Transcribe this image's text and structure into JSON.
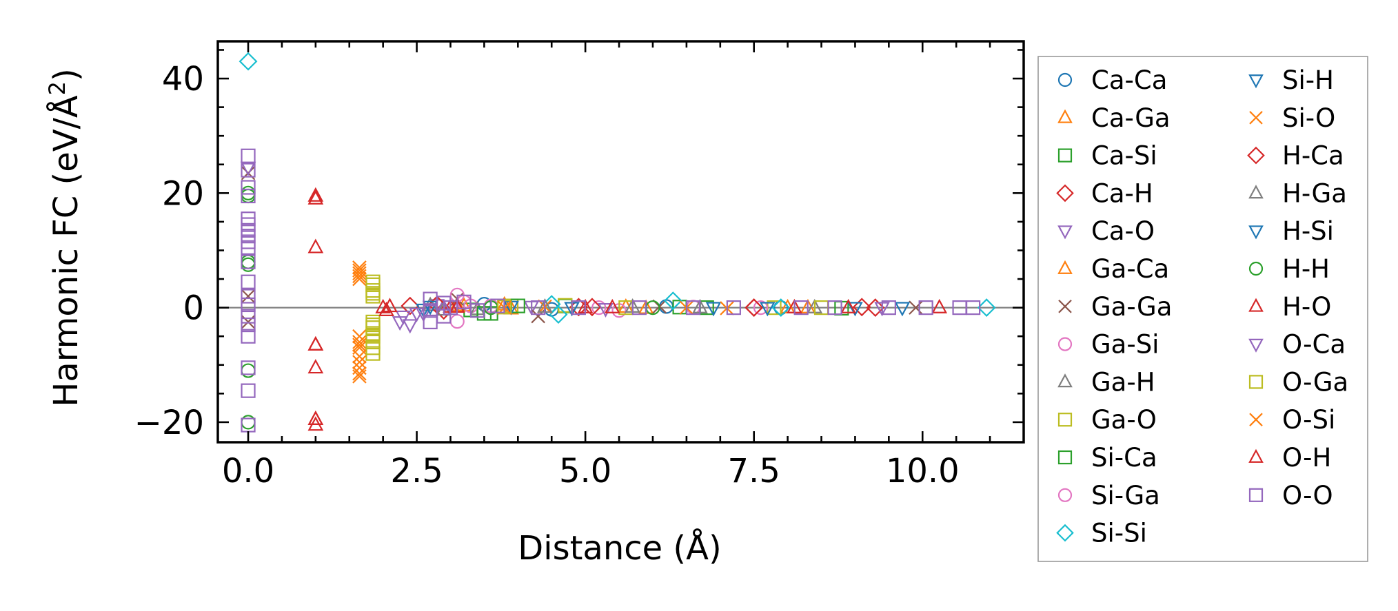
{
  "chart_data": {
    "type": "scatter",
    "xlabel": "Distance (Å)",
    "ylabel_main": "Harmonic FC (eV/Å",
    "ylabel_sup": "2",
    "ylabel_close": ")",
    "xlim": [
      -0.45,
      11.5
    ],
    "ylim": [
      -23.5,
      46.5
    ],
    "x_ticks": [
      0.0,
      2.5,
      5.0,
      7.5,
      10.0
    ],
    "x_tick_labels": [
      "0.0",
      "2.5",
      "5.0",
      "7.5",
      "10.0"
    ],
    "y_ticks": [
      -20,
      0,
      20,
      40
    ],
    "y_tick_labels": [
      "−20",
      "0",
      "20",
      "40"
    ],
    "zero_line": 0,
    "series": [
      {
        "name": "Ca-Ca",
        "color": "#1f77b4",
        "marker": "circle",
        "points": [
          [
            3.5,
            0.6
          ],
          [
            4.5,
            -0.3
          ],
          [
            6.2,
            0.2
          ],
          [
            7.9,
            0.0
          ]
        ]
      },
      {
        "name": "Ca-Ga",
        "color": "#ff7f0e",
        "marker": "triangle-up",
        "points": [
          [
            3.1,
            0.4
          ],
          [
            3.9,
            -0.2
          ],
          [
            5.6,
            0.1
          ],
          [
            8.3,
            0.0
          ]
        ]
      },
      {
        "name": "Ca-Si",
        "color": "#2ca02c",
        "marker": "square",
        "points": [
          [
            3.3,
            -0.4
          ],
          [
            3.6,
            -1.0
          ],
          [
            4.7,
            0.3
          ],
          [
            6.8,
            0.0
          ]
        ]
      },
      {
        "name": "Ca-H",
        "color": "#d62728",
        "marker": "diamond",
        "points": [
          [
            2.4,
            0.3
          ],
          [
            2.9,
            -0.5
          ],
          [
            4.9,
            0.1
          ],
          [
            7.5,
            0.0
          ],
          [
            9.1,
            0.1
          ]
        ]
      },
      {
        "name": "Ca-O",
        "color": "#9467bd",
        "marker": "triangle-down",
        "points": [
          [
            2.3,
            -1.5
          ],
          [
            2.4,
            -3.0
          ],
          [
            2.6,
            -1.0
          ],
          [
            2.8,
            0.5
          ],
          [
            4.2,
            0.2
          ]
        ]
      },
      {
        "name": "Ga-Ca",
        "color": "#ff7f0e",
        "marker": "triangle-up",
        "points": [
          [
            3.2,
            0.3
          ],
          [
            3.8,
            0.5
          ],
          [
            5.9,
            -0.1
          ],
          [
            8.0,
            0.0
          ]
        ]
      },
      {
        "name": "Ga-Ga",
        "color": "#8c564b",
        "marker": "x",
        "points": [
          [
            0,
            23.5
          ],
          [
            0,
            2
          ],
          [
            0,
            -2.5
          ],
          [
            3.1,
            1.5
          ],
          [
            4.3,
            -1.5
          ],
          [
            6.1,
            0.2
          ],
          [
            9.9,
            0.0
          ]
        ]
      },
      {
        "name": "Ga-Si",
        "color": "#e377c2",
        "marker": "circle",
        "points": [
          [
            3.1,
            2.2
          ],
          [
            3.1,
            -2.4
          ],
          [
            3.3,
            0.3
          ],
          [
            5.5,
            -0.5
          ],
          [
            6.6,
            0.1
          ]
        ]
      },
      {
        "name": "Ga-H",
        "color": "#7f7f7f",
        "marker": "triangle-up",
        "points": [
          [
            2.7,
            0.4
          ],
          [
            3.4,
            -0.3
          ],
          [
            5.7,
            0.1
          ],
          [
            8.4,
            0.0
          ]
        ]
      },
      {
        "name": "Ga-O",
        "color": "#bcbd22",
        "marker": "square",
        "points": [
          [
            1.85,
            4.5
          ],
          [
            1.85,
            3
          ],
          [
            1.85,
            2
          ],
          [
            1.85,
            -2.5
          ],
          [
            1.85,
            -3.5
          ],
          [
            1.85,
            -4.5
          ],
          [
            1.85,
            -6
          ],
          [
            1.85,
            -8
          ],
          [
            3.9,
            0.3
          ],
          [
            4.7,
            0.4
          ],
          [
            7.8,
            0.0
          ],
          [
            8.5,
            0.0
          ]
        ]
      },
      {
        "name": "Si-Ca",
        "color": "#2ca02c",
        "marker": "square",
        "points": [
          [
            3.5,
            -1.0
          ],
          [
            4.0,
            0.3
          ],
          [
            6.4,
            0.1
          ],
          [
            8.8,
            -0.1
          ]
        ]
      },
      {
        "name": "Si-Ga",
        "color": "#e377c2",
        "marker": "circle",
        "points": [
          [
            3.2,
            1.0
          ],
          [
            3.6,
            0.3
          ],
          [
            5.2,
            0.0
          ],
          [
            7.6,
            0.0
          ]
        ]
      },
      {
        "name": "Si-Si",
        "color": "#17becf",
        "marker": "diamond",
        "points": [
          [
            0,
            43
          ],
          [
            4.5,
            0.6
          ],
          [
            4.6,
            -1.2
          ],
          [
            6.3,
            1.2
          ],
          [
            7.9,
            0.0
          ],
          [
            10.95,
            0.0
          ]
        ]
      },
      {
        "name": "Si-H",
        "color": "#1f77b4",
        "marker": "triangle-down",
        "points": [
          [
            2.6,
            -0.3
          ],
          [
            3.9,
            0.2
          ],
          [
            6.9,
            0.0
          ],
          [
            9.0,
            0.0
          ]
        ]
      },
      {
        "name": "Si-O",
        "color": "#ff7f0e",
        "marker": "x",
        "points": [
          [
            1.65,
            7
          ],
          [
            1.65,
            6
          ],
          [
            1.65,
            5
          ],
          [
            1.65,
            -5
          ],
          [
            1.65,
            -6
          ],
          [
            1.65,
            -7
          ],
          [
            1.65,
            -8.5
          ],
          [
            1.65,
            -10.5
          ],
          [
            1.65,
            -12
          ],
          [
            4.4,
            0.2
          ],
          [
            7.1,
            -0.1
          ]
        ]
      },
      {
        "name": "H-Ca",
        "color": "#d62728",
        "marker": "diamond",
        "points": [
          [
            2.8,
            0.5
          ],
          [
            5.1,
            0.1
          ],
          [
            7.5,
            0.0
          ],
          [
            9.3,
            0.0
          ]
        ]
      },
      {
        "name": "H-Ga",
        "color": "#7f7f7f",
        "marker": "triangle-up",
        "points": [
          [
            2.9,
            -0.4
          ],
          [
            4.4,
            0.1
          ],
          [
            6.7,
            0.0
          ]
        ]
      },
      {
        "name": "H-Si",
        "color": "#1f77b4",
        "marker": "triangle-down",
        "points": [
          [
            2.7,
            0.2
          ],
          [
            4.8,
            0.0
          ],
          [
            7.7,
            0.0
          ],
          [
            9.7,
            0.0
          ]
        ]
      },
      {
        "name": "H-H",
        "color": "#2ca02c",
        "marker": "circle",
        "points": [
          [
            0,
            20
          ],
          [
            0,
            19.5
          ],
          [
            0,
            8
          ],
          [
            0,
            7.5
          ],
          [
            0,
            -11
          ],
          [
            0,
            -20
          ],
          [
            3.6,
            0.0
          ],
          [
            6.0,
            0.0
          ]
        ]
      },
      {
        "name": "H-O",
        "color": "#d62728",
        "marker": "triangle-up",
        "points": [
          [
            1.0,
            19.5
          ],
          [
            1.0,
            10.5
          ],
          [
            1.0,
            -6.5
          ],
          [
            1.0,
            -10.5
          ],
          [
            1.0,
            -19.5
          ],
          [
            1.0,
            -20.5
          ],
          [
            2.05,
            -0.5
          ],
          [
            2.1,
            0.2
          ],
          [
            3.0,
            0.1
          ],
          [
            5.0,
            0.0
          ],
          [
            8.1,
            0.0
          ],
          [
            10.25,
            0.0
          ]
        ]
      },
      {
        "name": "O-Ca",
        "color": "#9467bd",
        "marker": "triangle-down",
        "points": [
          [
            0,
            24.5
          ],
          [
            2.25,
            -2.5
          ],
          [
            2.5,
            -1.0
          ],
          [
            3.0,
            0.3
          ],
          [
            5.3,
            -0.2
          ],
          [
            9.4,
            0.0
          ]
        ]
      },
      {
        "name": "O-Ga",
        "color": "#bcbd22",
        "marker": "square",
        "points": [
          [
            1.85,
            4
          ],
          [
            1.85,
            2.5
          ],
          [
            1.85,
            -3
          ],
          [
            1.85,
            -5
          ],
          [
            1.85,
            -7
          ],
          [
            3.8,
            0.1
          ],
          [
            5.6,
            0.0
          ]
        ]
      },
      {
        "name": "O-Si",
        "color": "#ff7f0e",
        "marker": "x",
        "points": [
          [
            1.65,
            6.5
          ],
          [
            1.65,
            5.5
          ],
          [
            1.65,
            -6.5
          ],
          [
            1.65,
            -9.5
          ],
          [
            1.65,
            -11.5
          ],
          [
            3.8,
            0.0
          ],
          [
            6.5,
            0.0
          ]
        ]
      },
      {
        "name": "O-H",
        "color": "#d62728",
        "marker": "triangle-up",
        "points": [
          [
            1.0,
            19
          ],
          [
            1.0,
            -6.5
          ],
          [
            1.0,
            -19.5
          ],
          [
            2.0,
            0.0
          ],
          [
            3.1,
            0.1
          ],
          [
            5.4,
            0.0
          ],
          [
            8.9,
            0.0
          ]
        ]
      },
      {
        "name": "O-O",
        "color": "#9467bd",
        "marker": "square",
        "points": [
          [
            0,
            26.5
          ],
          [
            0,
            24
          ],
          [
            0,
            21
          ],
          [
            0,
            19.5
          ],
          [
            0,
            15.5
          ],
          [
            0,
            14.5
          ],
          [
            0,
            13.5
          ],
          [
            0,
            12.5
          ],
          [
            0,
            11.5
          ],
          [
            0,
            10.5
          ],
          [
            0,
            8
          ],
          [
            0,
            4.5
          ],
          [
            0,
            2
          ],
          [
            0,
            0.5
          ],
          [
            0,
            -1.5
          ],
          [
            0,
            -3
          ],
          [
            0,
            -5
          ],
          [
            0,
            -10.5
          ],
          [
            0,
            -14.5
          ],
          [
            0,
            -20.5
          ],
          [
            2.7,
            1.5
          ],
          [
            2.7,
            -0.5
          ],
          [
            2.7,
            -2.5
          ],
          [
            2.9,
            0.8
          ],
          [
            2.9,
            -1.5
          ],
          [
            3.0,
            0.0
          ],
          [
            3.2,
            1.0
          ],
          [
            3.4,
            -0.5
          ],
          [
            3.7,
            0.3
          ],
          [
            4.3,
            0.0
          ],
          [
            4.9,
            0.0
          ],
          [
            5.8,
            0.0
          ],
          [
            6.6,
            0.0
          ],
          [
            7.2,
            0.0
          ],
          [
            8.2,
            0.0
          ],
          [
            8.7,
            0.0
          ],
          [
            9.5,
            0.0
          ],
          [
            10.05,
            0.0
          ],
          [
            10.55,
            0.0
          ],
          [
            10.75,
            0.0
          ]
        ]
      }
    ]
  }
}
